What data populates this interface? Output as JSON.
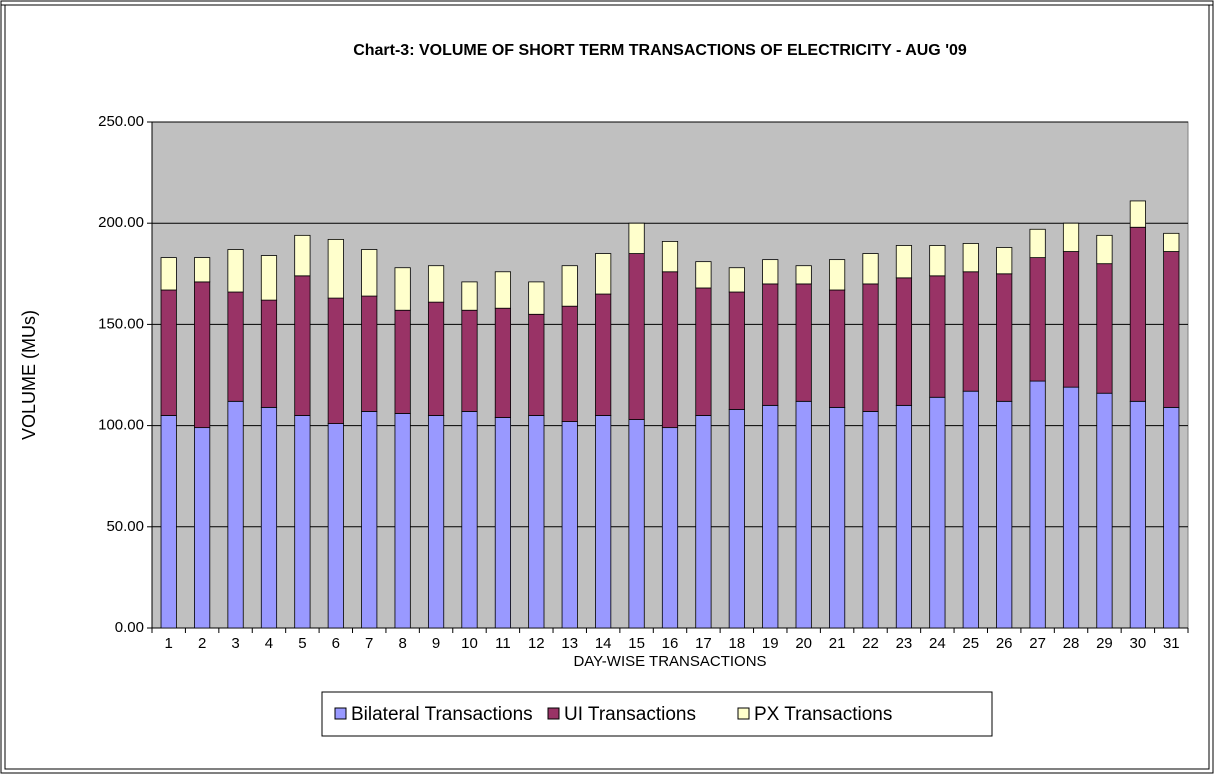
{
  "chart_data": {
    "type": "stacked_bar",
    "title": "Chart-3: VOLUME OF SHORT TERM TRANSACTIONS OF ELECTRICITY - AUG '09",
    "x_label": "DAY-WISE TRANSACTIONS",
    "y_label": "VOLUME (MUs)",
    "categories": [
      "1",
      "2",
      "3",
      "4",
      "5",
      "6",
      "7",
      "8",
      "9",
      "10",
      "11",
      "12",
      "13",
      "14",
      "15",
      "16",
      "17",
      "18",
      "19",
      "20",
      "21",
      "22",
      "23",
      "24",
      "25",
      "26",
      "27",
      "28",
      "29",
      "30",
      "31"
    ],
    "series": [
      {
        "name": "Bilateral Transactions",
        "color": "#9999ff",
        "values": [
          105,
          99,
          112,
          109,
          105,
          101,
          107,
          106,
          105,
          107,
          104,
          105,
          102,
          105,
          103,
          99,
          105,
          108,
          110,
          112,
          109,
          107,
          110,
          114,
          117,
          112,
          122,
          119,
          116,
          112,
          109
        ]
      },
      {
        "name": "UI Transactions",
        "color": "#993366",
        "values": [
          62,
          72,
          54,
          53,
          69,
          62,
          57,
          51,
          56,
          50,
          54,
          50,
          57,
          60,
          82,
          77,
          63,
          58,
          60,
          58,
          58,
          63,
          63,
          60,
          59,
          63,
          61,
          67,
          64,
          86,
          77
        ]
      },
      {
        "name": "PX Transactions",
        "color": "#ffffcc",
        "values": [
          16,
          12,
          21,
          22,
          20,
          29,
          23,
          21,
          18,
          14,
          18,
          16,
          20,
          20,
          15,
          15,
          13,
          12,
          12,
          9,
          15,
          15,
          16,
          15,
          14,
          13,
          14,
          14,
          14,
          13,
          9
        ]
      }
    ],
    "ylim": [
      0,
      250
    ],
    "yticks": [
      {
        "value": 0,
        "label": "0.00"
      },
      {
        "value": 50,
        "label": "50.00"
      },
      {
        "value": 100,
        "label": "100.00"
      },
      {
        "value": 150,
        "label": "150.00"
      },
      {
        "value": 200,
        "label": "200.00"
      },
      {
        "value": 250,
        "label": "250.00"
      }
    ],
    "grid": true,
    "legend": "bottom",
    "plot_background": "#c0c0c0"
  }
}
